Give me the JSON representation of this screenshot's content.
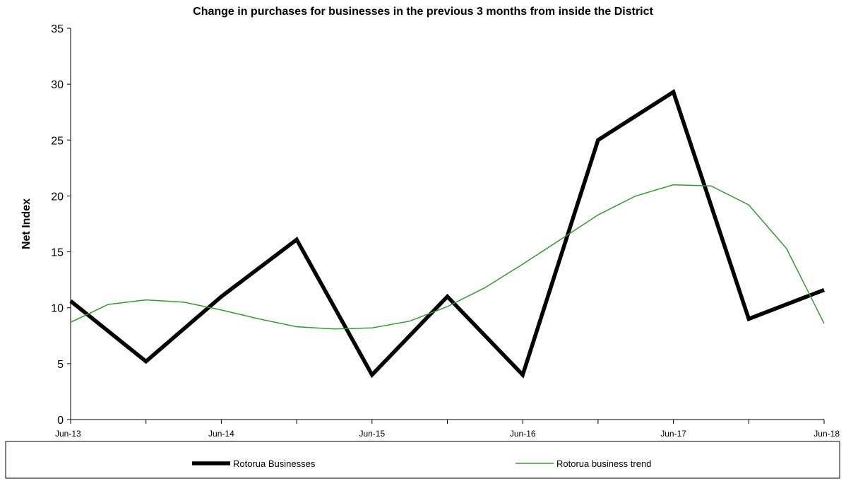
{
  "chart_data": {
    "type": "line",
    "title": "Change in purchases for businesses in the previous 3 months from inside the District",
    "ylabel": "Net Index",
    "xlabel": "",
    "ylim": [
      0,
      35
    ],
    "yticks": [
      0,
      5,
      10,
      15,
      20,
      25,
      30,
      35
    ],
    "x_tick_labels": [
      "Jun-13",
      "Jun-14",
      "Jun-15",
      "Jun-16",
      "Jun-17",
      "Jun-18"
    ],
    "x_range_years": [
      2013.5,
      2018.5
    ],
    "grid": false,
    "legend_placement": "bottom",
    "series": [
      {
        "name": "Rotorua Businesses",
        "color": "#000000",
        "x": [
          2013.5,
          2014.0,
          2014.5,
          2015.0,
          2015.5,
          2016.0,
          2016.5,
          2017.0,
          2017.5,
          2018.0,
          2018.5
        ],
        "values": [
          10.6,
          5.2,
          11.0,
          16.1,
          4.0,
          11.0,
          4.0,
          25.0,
          29.3,
          9.0,
          11.6
        ]
      },
      {
        "name": "Rotorua business trend",
        "color": "#339933",
        "x": [
          2013.5,
          2013.75,
          2014.0,
          2014.25,
          2014.5,
          2014.75,
          2015.0,
          2015.25,
          2015.5,
          2015.75,
          2016.0,
          2016.25,
          2016.5,
          2016.75,
          2017.0,
          2017.25,
          2017.5,
          2017.75,
          2018.0,
          2018.25,
          2018.5
        ],
        "values": [
          8.7,
          10.3,
          10.7,
          10.5,
          9.8,
          9.0,
          8.3,
          8.1,
          8.2,
          8.8,
          10.1,
          11.8,
          13.9,
          16.1,
          18.3,
          20.0,
          21.0,
          20.9,
          19.2,
          15.3,
          8.6
        ]
      }
    ]
  }
}
